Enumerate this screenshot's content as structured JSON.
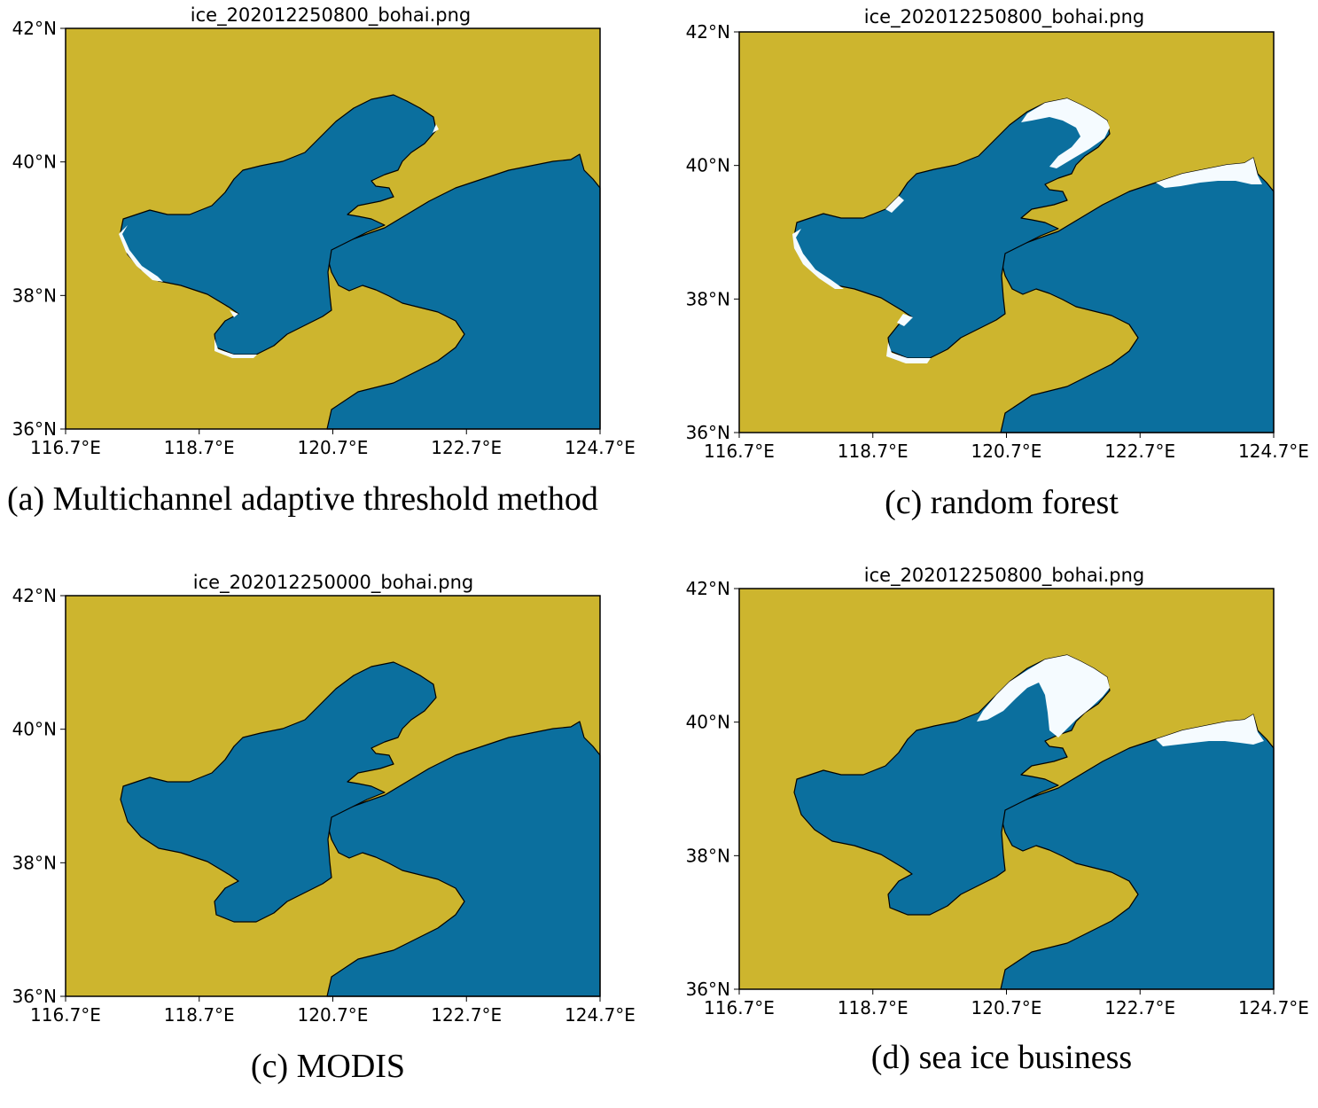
{
  "colors": {
    "land": "#cdb52e",
    "sea": "#0b6f9e",
    "ice": "#f5fbff",
    "frame": "#000000"
  },
  "ticks": {
    "lon": [
      "116.7°E",
      "118.7°E",
      "120.7°E",
      "122.7°E",
      "124.7°E"
    ],
    "lat": [
      "36°N",
      "38°N",
      "40°N",
      "42°N"
    ]
  },
  "panels": [
    {
      "title": "ice_202012250800_bohai.png",
      "caption": "(a) Multichannel adaptive threshold method",
      "ice_level": "minor"
    },
    {
      "title": "ice_202012250800_bohai.png",
      "caption": "(c) random forest",
      "ice_level": "moderate"
    },
    {
      "title": "ice_202012250000_bohai.png",
      "caption": "(c) MODIS",
      "ice_level": "none"
    },
    {
      "title": "ice_202012250800_bohai.png",
      "caption": "(d) sea ice business",
      "ice_level": "extensive"
    }
  ]
}
